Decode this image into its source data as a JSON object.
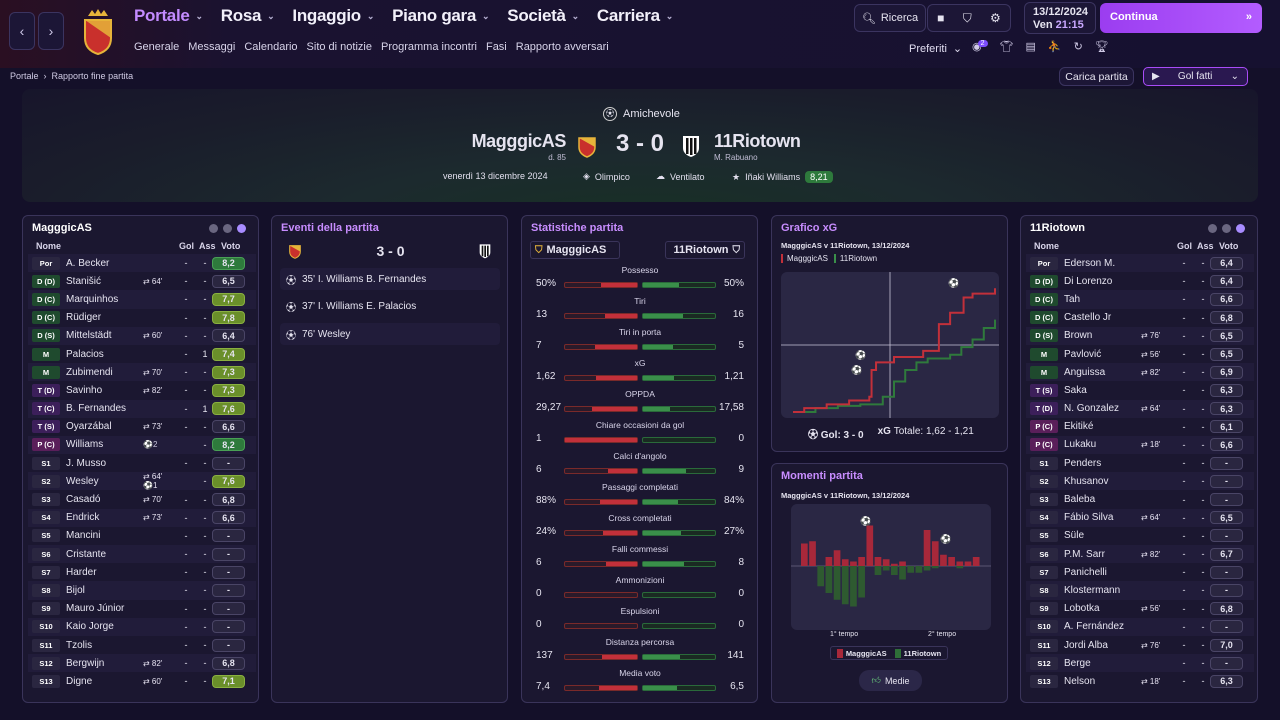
{
  "nav": {
    "main": [
      {
        "label": "Portale",
        "active": true
      },
      {
        "label": "Rosa"
      },
      {
        "label": "Ingaggio"
      },
      {
        "label": "Piano gara"
      },
      {
        "label": "Società"
      },
      {
        "label": "Carriera"
      }
    ],
    "sub": [
      "Generale",
      "Messaggi",
      "Calendario",
      "Sito di notizie",
      "Programma incontri",
      "Fasi",
      "Rapporto avversari"
    ],
    "search": "Ricerca",
    "date": "13/12/2024",
    "day": "Ven",
    "time": "21:15",
    "continue": "Continua",
    "prefs": "Preferiti",
    "badge": "2"
  },
  "breadcrumb": {
    "home": "Portale",
    "current": "Rapporto fine partita"
  },
  "actions": {
    "load": "Carica partita",
    "goals": "Gol fatti"
  },
  "match": {
    "competition": "Amichevole",
    "home": "MagggicAS",
    "home_sub": "d. 85",
    "away": "11Riotown",
    "away_sub": "M. Rabuano",
    "score": "3 - 0",
    "date": "venerdì 13 dicembre 2024",
    "stadium": "Olimpico",
    "weather": "Ventilato",
    "motm": "Iñaki Williams",
    "motm_rating": "8,21"
  },
  "headers": {
    "nome": "Nome",
    "gol": "Gol",
    "ass": "Ass",
    "voto": "Voto"
  },
  "home_team": {
    "title": "MagggicAS",
    "players": [
      {
        "pos": "Por",
        "cls": "Por",
        "name": "A. Becker",
        "sub": "",
        "gol": "-",
        "ass": "-",
        "voto": "8,2",
        "g": "g1"
      },
      {
        "pos": "D (D)",
        "cls": "D",
        "name": "Stanišić",
        "sub": "⇄ 64'",
        "gol": "-",
        "ass": "-",
        "voto": "6,5"
      },
      {
        "pos": "D (C)",
        "cls": "D",
        "name": "Marquinhos",
        "sub": "",
        "gol": "-",
        "ass": "-",
        "voto": "7,7",
        "g": "g2"
      },
      {
        "pos": "D (C)",
        "cls": "D",
        "name": "Rüdiger",
        "sub": "",
        "gol": "-",
        "ass": "-",
        "voto": "7,8",
        "g": "g2"
      },
      {
        "pos": "D (S)",
        "cls": "D",
        "name": "Mittelstädt",
        "sub": "⇄ 60'",
        "gol": "-",
        "ass": "-",
        "voto": "6,4"
      },
      {
        "pos": "M",
        "cls": "M",
        "name": "Palacios",
        "sub": "",
        "gol": "-",
        "ass": "1",
        "voto": "7,4",
        "g": "g2"
      },
      {
        "pos": "M",
        "cls": "M",
        "name": "Zubimendi",
        "sub": "⇄ 70'",
        "gol": "-",
        "ass": "-",
        "voto": "7,3",
        "g": "g2"
      },
      {
        "pos": "T (D)",
        "cls": "T",
        "name": "Savinho",
        "sub": "⇄ 82'",
        "gol": "-",
        "ass": "-",
        "voto": "7,3",
        "g": "g2"
      },
      {
        "pos": "T (C)",
        "cls": "T",
        "name": "B. Fernandes",
        "sub": "",
        "gol": "-",
        "ass": "1",
        "voto": "7,6",
        "g": "g2"
      },
      {
        "pos": "T (S)",
        "cls": "T",
        "name": "Oyarzábal",
        "sub": "⇄ 73'",
        "gol": "-",
        "ass": "-",
        "voto": "6,6"
      },
      {
        "pos": "P (C)",
        "cls": "P",
        "name": "Williams",
        "sub": "⚽2",
        "gol": "",
        "ass": "-",
        "voto": "8,2",
        "g": "g1"
      },
      {
        "pos": "S1",
        "cls": "S",
        "name": "J. Musso",
        "sub": "",
        "gol": "-",
        "ass": "-",
        "voto": "-"
      },
      {
        "pos": "S2",
        "cls": "S",
        "name": "Wesley",
        "sub": "⇄ 64'  ⚽1",
        "gol": "",
        "ass": "-",
        "voto": "7,6",
        "g": "g2"
      },
      {
        "pos": "S3",
        "cls": "S",
        "name": "Casadó",
        "sub": "⇄ 70'",
        "gol": "-",
        "ass": "-",
        "voto": "6,8"
      },
      {
        "pos": "S4",
        "cls": "S",
        "name": "Endrick",
        "sub": "⇄ 73'",
        "gol": "-",
        "ass": "-",
        "voto": "6,6"
      },
      {
        "pos": "S5",
        "cls": "S",
        "name": "Mancini",
        "sub": "",
        "gol": "-",
        "ass": "-",
        "voto": "-"
      },
      {
        "pos": "S6",
        "cls": "S",
        "name": "Cristante",
        "sub": "",
        "gol": "-",
        "ass": "-",
        "voto": "-"
      },
      {
        "pos": "S7",
        "cls": "S",
        "name": "Harder",
        "sub": "",
        "gol": "-",
        "ass": "-",
        "voto": "-"
      },
      {
        "pos": "S8",
        "cls": "S",
        "name": "Bijol",
        "sub": "",
        "gol": "-",
        "ass": "-",
        "voto": "-"
      },
      {
        "pos": "S9",
        "cls": "S",
        "name": "Mauro Júnior",
        "sub": "",
        "gol": "-",
        "ass": "-",
        "voto": "-"
      },
      {
        "pos": "S10",
        "cls": "S",
        "name": "Kaio Jorge",
        "sub": "",
        "gol": "-",
        "ass": "-",
        "voto": "-"
      },
      {
        "pos": "S11",
        "cls": "S",
        "name": "Tzolis",
        "sub": "",
        "gol": "-",
        "ass": "-",
        "voto": "-"
      },
      {
        "pos": "S12",
        "cls": "S",
        "name": "Bergwijn",
        "sub": "⇄ 82'",
        "gol": "-",
        "ass": "-",
        "voto": "6,8"
      },
      {
        "pos": "S13",
        "cls": "S",
        "name": "Digne",
        "sub": "⇄ 60'",
        "gol": "-",
        "ass": "-",
        "voto": "7,1",
        "g": "g2"
      }
    ]
  },
  "away_team": {
    "title": "11Riotown",
    "players": [
      {
        "pos": "Por",
        "cls": "Por",
        "name": "Ederson M.",
        "sub": "",
        "gol": "-",
        "ass": "-",
        "voto": "6,4"
      },
      {
        "pos": "D (D)",
        "cls": "D",
        "name": "Di Lorenzo",
        "sub": "",
        "gol": "-",
        "ass": "-",
        "voto": "6,4"
      },
      {
        "pos": "D (C)",
        "cls": "D",
        "name": "Tah",
        "sub": "",
        "gol": "-",
        "ass": "-",
        "voto": "6,6"
      },
      {
        "pos": "D (C)",
        "cls": "D",
        "name": "Castello Jr",
        "sub": "",
        "gol": "-",
        "ass": "-",
        "voto": "6,8"
      },
      {
        "pos": "D (S)",
        "cls": "D",
        "name": "Brown",
        "sub": "⇄ 76'",
        "gol": "-",
        "ass": "-",
        "voto": "6,5"
      },
      {
        "pos": "M",
        "cls": "M",
        "name": "Pavlović",
        "sub": "⇄ 56'",
        "gol": "-",
        "ass": "-",
        "voto": "6,5"
      },
      {
        "pos": "M",
        "cls": "M",
        "name": "Anguissa",
        "sub": "⇄ 82'",
        "gol": "-",
        "ass": "-",
        "voto": "6,9"
      },
      {
        "pos": "T (S)",
        "cls": "T",
        "name": "Saka",
        "sub": "",
        "gol": "-",
        "ass": "-",
        "voto": "6,3"
      },
      {
        "pos": "T (D)",
        "cls": "T",
        "name": "N. Gonzalez",
        "sub": "⇄ 64'",
        "gol": "-",
        "ass": "-",
        "voto": "6,3"
      },
      {
        "pos": "P (C)",
        "cls": "P",
        "name": "Ekitiké",
        "sub": "",
        "gol": "-",
        "ass": "-",
        "voto": "6,1"
      },
      {
        "pos": "P (C)",
        "cls": "P",
        "name": "Lukaku",
        "sub": "⇄ 18'",
        "gol": "-",
        "ass": "-",
        "voto": "6,6"
      },
      {
        "pos": "S1",
        "cls": "S",
        "name": "Penders",
        "sub": "",
        "gol": "-",
        "ass": "-",
        "voto": "-"
      },
      {
        "pos": "S2",
        "cls": "S",
        "name": "Khusanov",
        "sub": "",
        "gol": "-",
        "ass": "-",
        "voto": "-"
      },
      {
        "pos": "S3",
        "cls": "S",
        "name": "Baleba",
        "sub": "",
        "gol": "-",
        "ass": "-",
        "voto": "-"
      },
      {
        "pos": "S4",
        "cls": "S",
        "name": "Fábio Silva",
        "sub": "⇄ 64'",
        "gol": "-",
        "ass": "-",
        "voto": "6,5"
      },
      {
        "pos": "S5",
        "cls": "S",
        "name": "Süle",
        "sub": "",
        "gol": "-",
        "ass": "-",
        "voto": "-"
      },
      {
        "pos": "S6",
        "cls": "S",
        "name": "P.M. Sarr",
        "sub": "⇄ 82'",
        "gol": "-",
        "ass": "-",
        "voto": "6,7"
      },
      {
        "pos": "S7",
        "cls": "S",
        "name": "Panichelli",
        "sub": "",
        "gol": "-",
        "ass": "-",
        "voto": "-"
      },
      {
        "pos": "S8",
        "cls": "S",
        "name": "Klostermann",
        "sub": "",
        "gol": "-",
        "ass": "-",
        "voto": "-"
      },
      {
        "pos": "S9",
        "cls": "S",
        "name": "Lobotka",
        "sub": "⇄ 56'",
        "gol": "-",
        "ass": "-",
        "voto": "6,8"
      },
      {
        "pos": "S10",
        "cls": "S",
        "name": "A. Fernández",
        "sub": "",
        "gol": "-",
        "ass": "-",
        "voto": "-"
      },
      {
        "pos": "S11",
        "cls": "S",
        "name": "Jordi Alba",
        "sub": "⇄ 76'",
        "gol": "-",
        "ass": "-",
        "voto": "7,0"
      },
      {
        "pos": "S12",
        "cls": "S",
        "name": "Berge",
        "sub": "",
        "gol": "-",
        "ass": "-",
        "voto": "-"
      },
      {
        "pos": "S13",
        "cls": "S",
        "name": "Nelson",
        "sub": "⇄ 18'",
        "gol": "-",
        "ass": "-",
        "voto": "6,3"
      }
    ]
  },
  "events": {
    "title": "Eventi della partita",
    "score": "3 - 0",
    "list": [
      {
        "min": "35'",
        "scorer": "I. Williams",
        "assist": "B. Fernandes"
      },
      {
        "min": "37'",
        "scorer": "I. Williams",
        "assist": "E. Palacios"
      },
      {
        "min": "76'",
        "scorer": "Wesley",
        "assist": ""
      }
    ]
  },
  "stats": {
    "title": "Statistiche partita",
    "home": "MagggicAS",
    "away": "11Riotown",
    "items": [
      {
        "label": "Possesso",
        "l": "50%",
        "r": "50%",
        "lf": 0.5,
        "rf": 0.5
      },
      {
        "label": "Tiri",
        "l": "13",
        "r": "16",
        "lf": 0.45,
        "rf": 0.55
      },
      {
        "label": "Tiri in porta",
        "l": "7",
        "r": "5",
        "lf": 0.58,
        "rf": 0.42
      },
      {
        "label": "xG",
        "l": "1,62",
        "r": "1,21",
        "lf": 0.57,
        "rf": 0.43
      },
      {
        "label": "OPPDA",
        "l": "29,27",
        "r": "17,58",
        "lf": 0.62,
        "rf": 0.38
      },
      {
        "label": "Chiare occasioni da gol",
        "l": "1",
        "r": "0",
        "lf": 1,
        "rf": 0
      },
      {
        "label": "Calci d'angolo",
        "l": "6",
        "r": "9",
        "lf": 0.4,
        "rf": 0.6
      },
      {
        "label": "Passaggi completati",
        "l": "88%",
        "r": "84%",
        "lf": 0.51,
        "rf": 0.49
      },
      {
        "label": "Cross completati",
        "l": "24%",
        "r": "27%",
        "lf": 0.47,
        "rf": 0.53
      },
      {
        "label": "Falli commessi",
        "l": "6",
        "r": "8",
        "lf": 0.43,
        "rf": 0.57
      },
      {
        "label": "Ammonizioni",
        "l": "0",
        "r": "0",
        "lf": 0,
        "rf": 0
      },
      {
        "label": "Espulsioni",
        "l": "0",
        "r": "0",
        "lf": 0,
        "rf": 0
      },
      {
        "label": "Distanza percorsa",
        "l": "137",
        "r": "141",
        "lf": 0.49,
        "rf": 0.51
      },
      {
        "label": "Media voto",
        "l": "7,4",
        "r": "6,5",
        "lf": 0.53,
        "rf": 0.47
      }
    ]
  },
  "xg": {
    "title": "Grafico xG",
    "subtitle": "MagggicAS v 11Riotown, 13/12/2024",
    "legend_home": "MagggicAS",
    "legend_away": "11Riotown",
    "footer_goals": "Gol: 3 - 0",
    "footer_xg": "xG",
    "footer_total": "Totale: 1,62 - 1,21"
  },
  "moments": {
    "title": "Momenti partita",
    "subtitle": "MagggicAS v 11Riotown, 13/12/2024",
    "h1": "1° tempo",
    "h2": "2° tempo",
    "legend_home": "MagggicAS",
    "legend_away": "11Riotown",
    "button": "Medie"
  },
  "chart_data": [
    {
      "type": "line",
      "title": "Grafico xG",
      "series": [
        {
          "name": "MagggicAS",
          "x": [
            0,
            5,
            15,
            25,
            34,
            35,
            37,
            45,
            58,
            65,
            70,
            76,
            80,
            90
          ],
          "y": [
            0,
            0.05,
            0.1,
            0.15,
            0.2,
            0.55,
            0.65,
            0.72,
            0.8,
            1.15,
            1.3,
            1.5,
            1.55,
            1.62
          ]
        },
        {
          "name": "11Riotown",
          "x": [
            0,
            10,
            20,
            30,
            40,
            45,
            50,
            55,
            60,
            70,
            75,
            80,
            85,
            90
          ],
          "y": [
            0,
            0.05,
            0.08,
            0.1,
            0.2,
            0.4,
            0.55,
            0.65,
            0.7,
            0.75,
            0.85,
            0.95,
            1.1,
            1.21
          ]
        }
      ]
    },
    {
      "type": "bar",
      "title": "Momenti partita",
      "series": [
        {
          "name": "MagggicAS",
          "values": [
            0.5,
            0.55,
            0,
            0.2,
            0.35,
            0.15,
            0.1,
            0.2,
            0.9,
            0.2,
            0.15,
            0.05,
            0.1,
            0,
            0,
            0.8,
            0.55,
            0.25,
            0.2,
            0.1,
            0.1,
            0.2
          ]
        },
        {
          "name": "11Riotown",
          "values": [
            0,
            0,
            0.45,
            0.6,
            0.75,
            0.85,
            0.9,
            0.7,
            0,
            0.2,
            0.1,
            0.2,
            0.3,
            0.15,
            0.15,
            0.1,
            0.05,
            0,
            0,
            0.05,
            0,
            0
          ]
        }
      ]
    }
  ]
}
